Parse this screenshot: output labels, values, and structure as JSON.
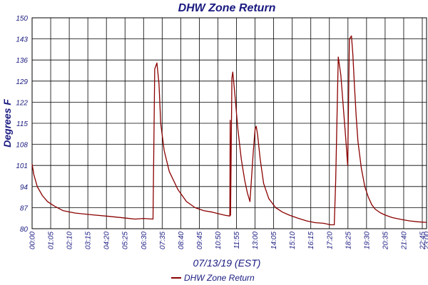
{
  "chart_data": {
    "type": "line",
    "title": "DHW Zone Return",
    "xlabel": "07/13/19 (EST)",
    "ylabel": "Degrees F",
    "ylim": [
      80,
      150
    ],
    "yticks": [
      "80",
      "87",
      "94",
      "101",
      "108",
      "115",
      "122",
      "129",
      "136",
      "143",
      "150"
    ],
    "xlim_hours": [
      0,
      23
    ],
    "xticks": [
      "00:00",
      "01:05",
      "02:10",
      "03:15",
      "04:20",
      "05:25",
      "06:30",
      "07:35",
      "08:40",
      "09:45",
      "10:50",
      "11:55",
      "13:00",
      "14:05",
      "15:10",
      "16:15",
      "17:20",
      "18:25",
      "19:30",
      "20:35",
      "21:40",
      "22:45",
      "23:00"
    ],
    "grid": true,
    "legend_position": "bottom-left",
    "series": [
      {
        "name": "DHW Zone Return",
        "color": "#8b0000",
        "x_hours": [
          0.0,
          0.1,
          0.3,
          0.6,
          0.9,
          1.3,
          1.8,
          2.5,
          3.5,
          4.5,
          5.5,
          6.0,
          6.5,
          7.05,
          7.15,
          7.28,
          7.4,
          7.5,
          7.7,
          8.0,
          8.5,
          9.0,
          9.5,
          10.0,
          10.5,
          11.0,
          11.3,
          11.53,
          11.55,
          11.57,
          11.65,
          11.7,
          11.8,
          12.0,
          12.2,
          12.4,
          12.55,
          12.7,
          12.9,
          13.0,
          13.07,
          13.15,
          13.3,
          13.5,
          13.8,
          14.2,
          14.6,
          15.0,
          15.5,
          16.0,
          16.5,
          17.0,
          17.4,
          17.62,
          17.7,
          17.85,
          18.0,
          18.15,
          18.3,
          18.4,
          18.5,
          18.62,
          18.7,
          18.8,
          18.9,
          19.0,
          19.2,
          19.4,
          19.6,
          19.8,
          20.0,
          20.3,
          20.6,
          21.0,
          21.5,
          22.0,
          22.5,
          23.0
        ],
        "y": [
          101.5,
          98,
          94,
          91,
          89,
          87.5,
          86,
          85.2,
          84.6,
          84.1,
          83.5,
          83.2,
          83.4,
          83.2,
          133,
          135,
          128,
          115,
          106,
          99,
          93,
          89,
          87,
          86,
          85.5,
          84.8,
          84.4,
          84.2,
          116,
          84.5,
          130,
          132,
          126,
          113,
          103,
          96,
          92,
          89,
          106,
          113,
          114,
          111,
          103,
          95,
          90,
          87,
          85.5,
          84.5,
          83.5,
          82.6,
          82,
          81.8,
          81.3,
          81.3,
          96,
          137,
          131,
          120,
          109,
          101,
          143,
          144,
          138,
          127,
          117,
          109,
          100,
          94,
          90.5,
          88,
          86.5,
          85.3,
          84.5,
          83.7,
          83.1,
          82.6,
          82.3,
          82.1
        ]
      }
    ]
  }
}
